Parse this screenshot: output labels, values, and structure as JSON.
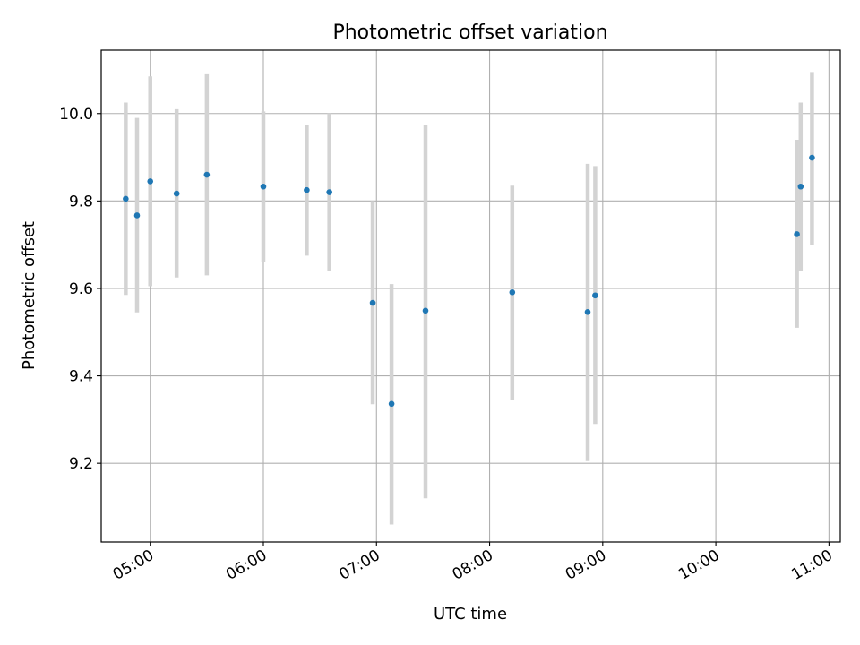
{
  "chart_data": {
    "type": "scatter",
    "title": "Photometric offset variation",
    "xlabel": "UTC time",
    "ylabel": "Photometric offset",
    "xlim": [
      "04:34",
      "11:06"
    ],
    "ylim": [
      9.02,
      10.145
    ],
    "grid": true,
    "x_ticks": [
      "05:00",
      "06:00",
      "07:00",
      "08:00",
      "09:00",
      "10:00",
      "11:00"
    ],
    "y_ticks": [
      9.2,
      9.4,
      9.6,
      9.8,
      10.0
    ],
    "y_tick_labels": [
      "9.2",
      "9.4",
      "9.6",
      "9.8",
      "10.0"
    ],
    "colors": {
      "point": "#1f77b4",
      "errorbar": "#d3d3d3",
      "grid": "#b0b0b0"
    },
    "points": [
      {
        "x": "04:47",
        "y": 9.805,
        "yerr_low": 9.585,
        "yerr_high": 10.025
      },
      {
        "x": "04:53",
        "y": 9.767,
        "yerr_low": 9.545,
        "yerr_high": 9.99
      },
      {
        "x": "05:00",
        "y": 9.845,
        "yerr_low": 9.605,
        "yerr_high": 10.085
      },
      {
        "x": "05:14",
        "y": 9.817,
        "yerr_low": 9.625,
        "yerr_high": 10.01
      },
      {
        "x": "05:30",
        "y": 9.86,
        "yerr_low": 9.63,
        "yerr_high": 10.09
      },
      {
        "x": "06:00",
        "y": 9.833,
        "yerr_low": 9.66,
        "yerr_high": 10.005
      },
      {
        "x": "06:23",
        "y": 9.825,
        "yerr_low": 9.675,
        "yerr_high": 9.975
      },
      {
        "x": "06:35",
        "y": 9.82,
        "yerr_low": 9.64,
        "yerr_high": 10.0
      },
      {
        "x": "06:58",
        "y": 9.567,
        "yerr_low": 9.335,
        "yerr_high": 9.8
      },
      {
        "x": "07:08",
        "y": 9.336,
        "yerr_low": 9.06,
        "yerr_high": 9.61
      },
      {
        "x": "07:26",
        "y": 9.549,
        "yerr_low": 9.12,
        "yerr_high": 9.975
      },
      {
        "x": "08:12",
        "y": 9.591,
        "yerr_low": 9.345,
        "yerr_high": 9.835
      },
      {
        "x": "08:52",
        "y": 9.546,
        "yerr_low": 9.205,
        "yerr_high": 9.885
      },
      {
        "x": "08:56",
        "y": 9.584,
        "yerr_low": 9.29,
        "yerr_high": 9.88
      },
      {
        "x": "10:43",
        "y": 9.724,
        "yerr_low": 9.51,
        "yerr_high": 9.94
      },
      {
        "x": "10:45",
        "y": 9.833,
        "yerr_low": 9.64,
        "yerr_high": 10.025
      },
      {
        "x": "10:51",
        "y": 9.899,
        "yerr_low": 9.7,
        "yerr_high": 10.095
      }
    ]
  }
}
